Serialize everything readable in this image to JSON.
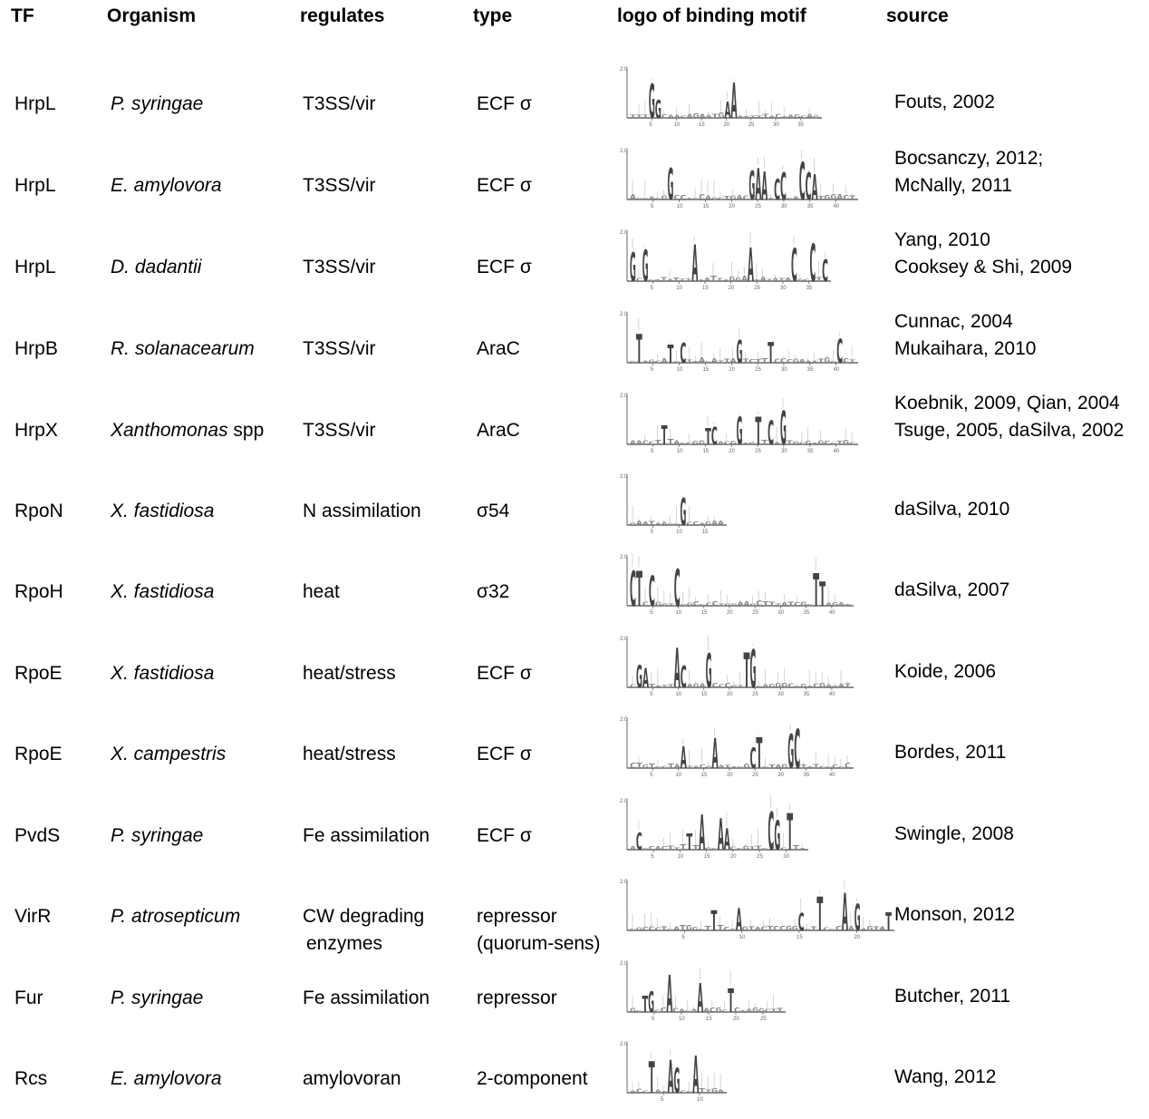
{
  "headers": {
    "tf": "TF",
    "organism": "Organism",
    "regulates": "regulates",
    "type": "type",
    "logo": "logo of binding motif",
    "source": "source"
  },
  "rows": [
    {
      "tf": "HrpL",
      "organism": "P. syringae",
      "organism_suffix": "",
      "regulates": "T3SS/vir",
      "regulates2": "",
      "type": "ECF σ",
      "type2": "",
      "source": "Fouts, 2002",
      "source2": "",
      "logo": {
        "ticks": [
          "5",
          "10",
          "15",
          "20",
          "25",
          "30",
          "35"
        ],
        "ymax": "2.0",
        "letters": "GG AAC C C CC A"
      }
    },
    {
      "tf": "HrpL",
      "organism": "E. amylovora",
      "organism_suffix": "",
      "regulates": "T3SS/vir",
      "regulates2": "",
      "type": "ECF σ",
      "type2": "",
      "source": "Bocsanczy, 2012;",
      "source2": "McNally, 2011",
      "logo": {
        "ticks": [
          "5",
          "10",
          "15",
          "20",
          "25",
          "30",
          "35",
          "40"
        ],
        "ymax": "2.0",
        "letters": "GG AAC C CCA C"
      }
    },
    {
      "tf": "HrpL",
      "organism": "D. dadantii",
      "organism_suffix": "",
      "regulates": "T3SS/vir",
      "regulates2": "",
      "type": "ECF σ",
      "type2": "",
      "source": "Yang, 2010",
      "source2": "Cooksey & Shi, 2009",
      "logo": {
        "ticks": [
          "5",
          "10",
          "15",
          "20",
          "25",
          "30",
          "35"
        ],
        "ymax": "2.0",
        "letters": "GG AACC CCT A"
      }
    },
    {
      "tf": "HrpB",
      "organism": "R. solanacearum",
      "organism_suffix": "",
      "regulates": "T3SS/vir",
      "regulates2": "",
      "type": "AraC",
      "type2": "",
      "source": "Cunnac, 2004",
      "source2": "Mukaihara, 2010",
      "logo": {
        "ticks": [
          "5",
          "10",
          "15",
          "20",
          "25",
          "30",
          "35",
          "40"
        ],
        "ymax": "2.0",
        "letters": "TTCG TCG"
      }
    },
    {
      "tf": "HrpX",
      "organism": "Xanthomonas",
      "organism_suffix": " spp",
      "regulates": "T3SS/vir",
      "regulates2": "",
      "type": "AraC",
      "type2": "",
      "source": "Koebnik, 2009, Qian, 2004",
      "source2": "Tsuge, 2005, daSilva, 2002",
      "logo": {
        "ticks": [
          "5",
          "10",
          "15",
          "20",
          "25",
          "30",
          "35",
          "40"
        ],
        "ymax": "2.0",
        "letters": "TTCG TCG"
      }
    },
    {
      "tf": "RpoN",
      "organism": "X. fastidiosa",
      "organism_suffix": "",
      "regulates": "N assimilation",
      "regulates2": "",
      "type": "σ54",
      "type2": "",
      "source": "daSilva, 2010",
      "source2": "",
      "logo": {
        "ticks": [
          "5",
          "10",
          "15"
        ],
        "ymax": "2.0",
        "letters": "GG CG TGC"
      }
    },
    {
      "tf": "RpoH",
      "organism": "X. fastidiosa",
      "organism_suffix": "",
      "regulates": "heat",
      "regulates2": "",
      "type": "σ32",
      "type2": "",
      "source": "daSilva, 2007",
      "source2": "",
      "logo": {
        "ticks": [
          "5",
          "10",
          "15",
          "20",
          "25",
          "30",
          "35",
          "40"
        ],
        "ymax": "2.0",
        "letters": "CT CCTTG CG TGCC"
      }
    },
    {
      "tf": "RpoE",
      "organism": "X. fastidiosa",
      "organism_suffix": "",
      "regulates": "heat/stress",
      "regulates2": "",
      "type": "ECF σ",
      "type2": "",
      "source": "Koide, 2006",
      "source2": "",
      "logo": {
        "ticks": [
          "5",
          "10",
          "15",
          "20",
          "25",
          "30",
          "35",
          "40"
        ],
        "ymax": "2.0",
        "letters": "GAAC G T G"
      }
    },
    {
      "tf": "RpoE",
      "organism": "X. campestris",
      "organism_suffix": "",
      "regulates": "heat/stress",
      "regulates2": "",
      "type": "ECF σ",
      "type2": "",
      "source": "Bordes, 2011",
      "source2": "",
      "logo": {
        "ticks": [
          "5",
          "10",
          "15",
          "20",
          "25",
          "30",
          "35",
          "40"
        ],
        "ymax": "2.0",
        "letters": "AACT GCG G"
      }
    },
    {
      "tf": "PvdS",
      "organism": "P. syringae",
      "organism_suffix": "",
      "regulates": "Fe assimilation",
      "regulates2": "",
      "type": "ECF σ",
      "type2": "",
      "source": "Swingle, 2008",
      "source2": "",
      "logo": {
        "ticks": [
          "5",
          "10",
          "15",
          "20",
          "25",
          "30"
        ],
        "ymax": "2.0",
        "letters": "CTAAA CGTT CT"
      }
    },
    {
      "tf": "VirR",
      "organism": "P. atrosepticum",
      "organism_suffix": "",
      "regulates": "CW degrading",
      "regulates2": "enzymes",
      "type": "repressor",
      "type2": "(quorum-sens)",
      "source": "Monson, 2012",
      "source2": "",
      "logo": {
        "ticks": [
          "5",
          "10",
          "15",
          "20"
        ],
        "ymax": "2.0",
        "letters": "TAC T A GTT CG"
      }
    },
    {
      "tf": "Fur",
      "organism": "P. syringae",
      "organism_suffix": "",
      "regulates": "Fe assimilation",
      "regulates2": "",
      "type": "repressor",
      "type2": "",
      "source": "Butcher, 2011",
      "source2": "",
      "logo": {
        "ticks": [
          "5",
          "10",
          "15",
          "20",
          "25"
        ],
        "ymax": "2.0",
        "letters": "TGAA TCTCA"
      }
    },
    {
      "tf": "Rcs",
      "organism": "E. amylovora",
      "organism_suffix": "",
      "regulates": "amylovoran",
      "regulates2": "",
      "type": "2-component",
      "type2": "",
      "source": "Wang, 2012",
      "source2": "",
      "logo": {
        "ticks": [
          "5",
          "10"
        ],
        "ymax": "2.0",
        "letters": "TAGA TCTA"
      }
    }
  ]
}
